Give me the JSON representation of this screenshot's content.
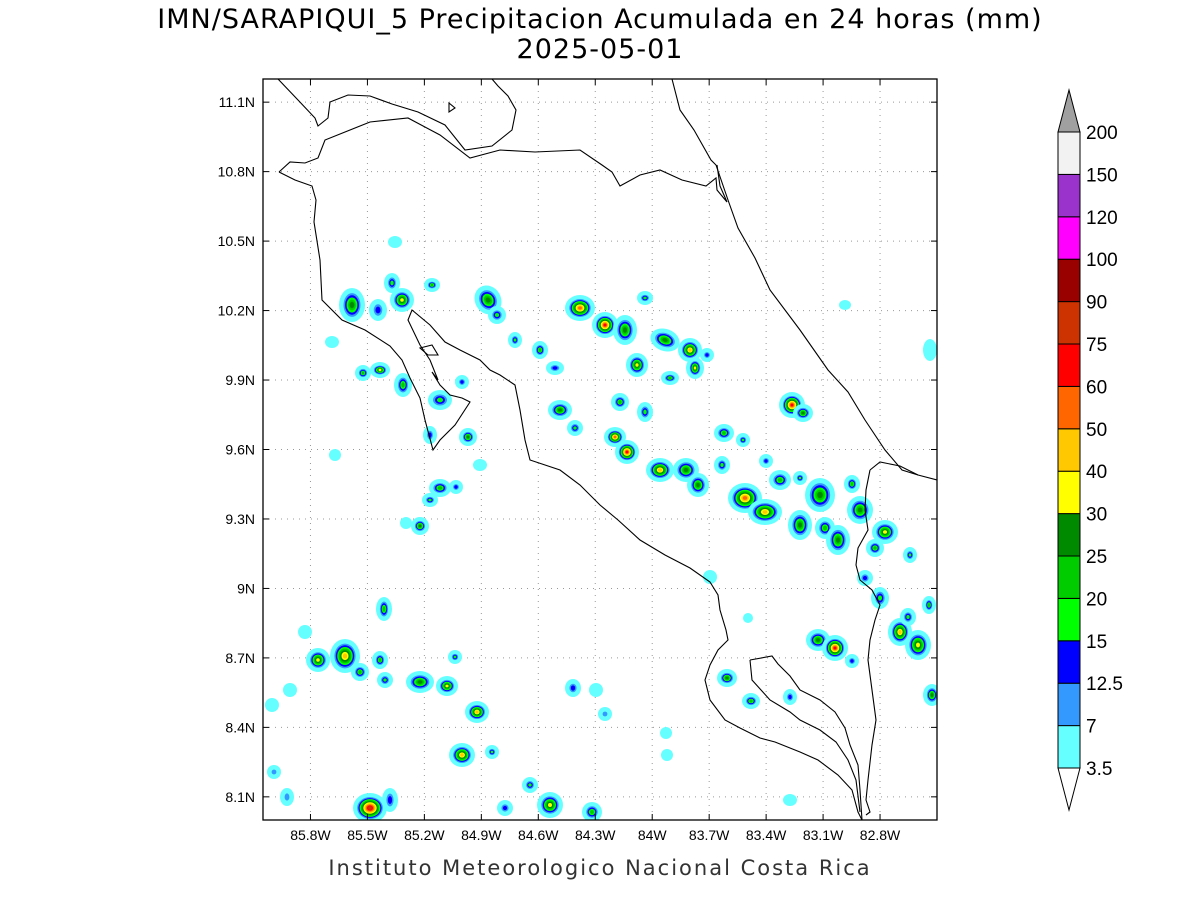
{
  "title": {
    "line1": "IMN/SARAPIQUI_5 Precipitacion Acumulada en 24 horas (mm)",
    "line2": "2025-05-01"
  },
  "footer": "Instituto Meteorologico Nacional Costa Rica",
  "map": {
    "lon_range": [
      -86.05,
      -82.5
    ],
    "lat_range": [
      8.0,
      11.2
    ],
    "lon_ticks": [
      {
        "value": -85.8,
        "label": "85.8W"
      },
      {
        "value": -85.5,
        "label": "85.5W"
      },
      {
        "value": -85.2,
        "label": "85.2W"
      },
      {
        "value": -84.9,
        "label": "84.9W"
      },
      {
        "value": -84.6,
        "label": "84.6W"
      },
      {
        "value": -84.3,
        "label": "84.3W"
      },
      {
        "value": -84.0,
        "label": "84W"
      },
      {
        "value": -83.7,
        "label": "83.7W"
      },
      {
        "value": -83.4,
        "label": "83.4W"
      },
      {
        "value": -83.1,
        "label": "83.1W"
      },
      {
        "value": -82.8,
        "label": "82.8W"
      }
    ],
    "lat_ticks": [
      {
        "value": 8.1,
        "label": "8.1N"
      },
      {
        "value": 8.4,
        "label": "8.4N"
      },
      {
        "value": 8.7,
        "label": "8.7N"
      },
      {
        "value": 9.0,
        "label": "9N"
      },
      {
        "value": 9.3,
        "label": "9.3N"
      },
      {
        "value": 9.6,
        "label": "9.6N"
      },
      {
        "value": 9.9,
        "label": "9.9N"
      },
      {
        "value": 10.2,
        "label": "10.2N"
      },
      {
        "value": 10.5,
        "label": "10.5N"
      },
      {
        "value": 10.8,
        "label": "10.8N"
      },
      {
        "value": 11.1,
        "label": "11.1N"
      }
    ],
    "grid": true
  },
  "legend": {
    "upper_cap_color": "#a0a0a0",
    "bins": [
      {
        "color": "#66ffff"
      },
      {
        "color": "#3399ff"
      },
      {
        "color": "#0000ff"
      },
      {
        "color": "#00ff00"
      },
      {
        "color": "#00cc00"
      },
      {
        "color": "#008a00"
      },
      {
        "color": "#ffff00"
      },
      {
        "color": "#ffc800"
      },
      {
        "color": "#ff6600"
      },
      {
        "color": "#ff0000"
      },
      {
        "color": "#cc3300"
      },
      {
        "color": "#990000"
      },
      {
        "color": "#ff00ff"
      },
      {
        "color": "#9933cc"
      },
      {
        "color": "#f2f2f2"
      }
    ],
    "labels": [
      "3.5",
      "7",
      "12.5",
      "15",
      "20",
      "25",
      "30",
      "40",
      "50",
      "60",
      "75",
      "90",
      "100",
      "120",
      "150",
      "200"
    ]
  }
}
